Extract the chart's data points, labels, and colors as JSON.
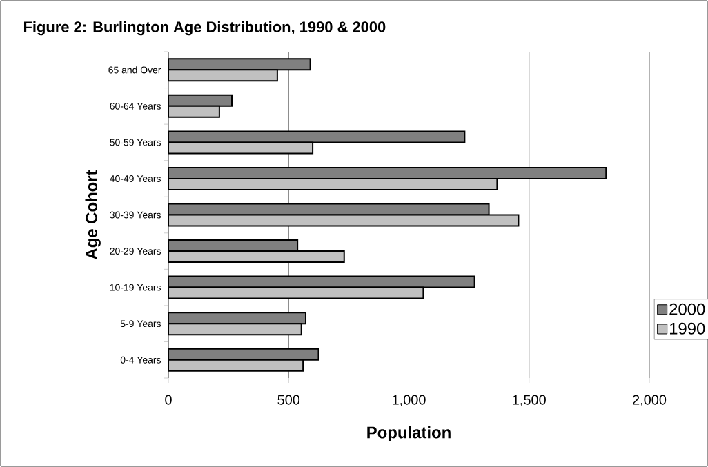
{
  "chart_data": {
    "type": "bar",
    "orientation": "horizontal",
    "title": "Figure 2: Burlington Age Distribution, 1990 & 2000",
    "xlabel": "Population",
    "ylabel": "Age Cohort",
    "categories": [
      "65 and Over",
      "60-64 Years",
      "50-59 Years",
      "40-49 Years",
      "30-39 Years",
      "20-29 Years",
      "10-19 Years",
      "5-9 Years",
      "0-4 Years"
    ],
    "series": [
      {
        "name": "2000",
        "color": "#808080",
        "values": [
          590,
          264,
          1232,
          1820,
          1333,
          537,
          1273,
          571,
          624
        ]
      },
      {
        "name": "1990",
        "color": "#c0c0c0",
        "values": [
          453,
          212,
          600,
          1367,
          1456,
          731,
          1060,
          553,
          560
        ]
      }
    ],
    "xlim": [
      0,
      2000
    ],
    "xticks": [
      0,
      500,
      {
        "value": 1000,
        "label": "1,000"
      },
      {
        "value": 1500,
        "label": "1,500"
      },
      {
        "value": 2000,
        "label": "2,000"
      }
    ],
    "grid": "x",
    "legend": "right"
  }
}
